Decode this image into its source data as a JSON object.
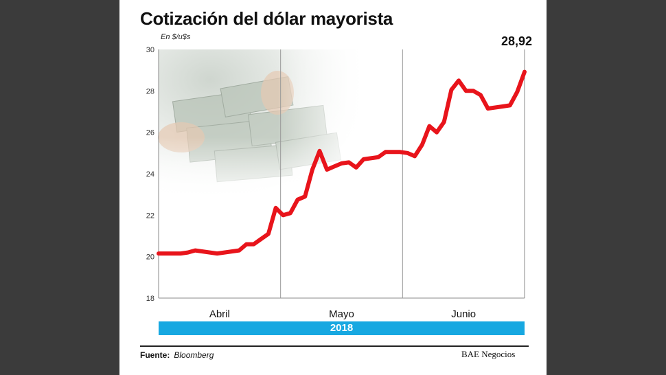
{
  "chart_data": {
    "type": "line",
    "title": "Cotización del dólar mayorista",
    "ylabel": "En $/u$s",
    "ylim": [
      18,
      30
    ],
    "y_ticks": [
      "18",
      "20",
      "22",
      "24",
      "26",
      "28",
      "30"
    ],
    "months": [
      "Abril",
      "Mayo",
      "Junio"
    ],
    "year": "2018",
    "last_value_label": "28,92",
    "series": [
      {
        "color": "#e8141b",
        "points": [
          [
            0,
            20.15
          ],
          [
            1,
            20.15
          ],
          [
            2,
            20.15
          ],
          [
            3,
            20.15
          ],
          [
            4,
            20.2
          ],
          [
            5,
            20.3
          ],
          [
            6,
            20.25
          ],
          [
            7,
            20.2
          ],
          [
            8,
            20.15
          ],
          [
            9,
            20.2
          ],
          [
            10,
            20.25
          ],
          [
            11,
            20.3
          ],
          [
            12,
            20.6
          ],
          [
            13,
            20.6
          ],
          [
            14,
            20.85
          ],
          [
            15,
            21.1
          ],
          [
            16,
            22.35
          ],
          [
            17,
            22.0
          ],
          [
            18,
            22.1
          ],
          [
            19,
            22.75
          ],
          [
            20,
            22.9
          ],
          [
            21,
            24.2
          ],
          [
            22,
            25.1
          ],
          [
            23,
            24.2
          ],
          [
            24,
            24.35
          ],
          [
            25,
            24.5
          ],
          [
            26,
            24.55
          ],
          [
            27,
            24.3
          ],
          [
            28,
            24.7
          ],
          [
            29,
            24.75
          ],
          [
            30,
            24.8
          ],
          [
            31,
            25.05
          ],
          [
            32,
            25.05
          ],
          [
            33,
            25.05
          ],
          [
            34,
            25.0
          ],
          [
            35,
            24.85
          ],
          [
            36,
            25.4
          ],
          [
            37,
            26.3
          ],
          [
            38,
            26.0
          ],
          [
            39,
            26.5
          ],
          [
            40,
            28.05
          ],
          [
            41,
            28.5
          ],
          [
            42,
            28.0
          ],
          [
            43,
            28.0
          ],
          [
            44,
            27.8
          ],
          [
            45,
            27.15
          ],
          [
            46,
            27.2
          ],
          [
            47,
            27.25
          ],
          [
            48,
            27.3
          ],
          [
            49,
            27.95
          ],
          [
            50,
            28.92
          ]
        ]
      }
    ],
    "x_range": [
      0,
      50
    ],
    "grid": "vertical month separators"
  },
  "footer": {
    "source_label": "Fuente:",
    "source_name": "Bloomberg",
    "credit": "BAE Negocios"
  }
}
